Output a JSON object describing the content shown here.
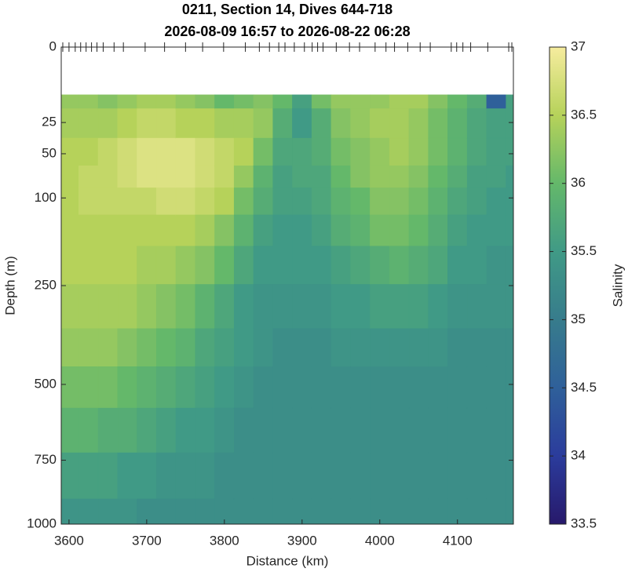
{
  "chart_data": {
    "type": "contourf",
    "title": "0211, Section 14, Dives 644-718",
    "subtitle": "2026-08-09 16:57 to 2026-08-22 06:28",
    "x_label": "Distance (km)",
    "y_label": "Depth (m)",
    "colorbar_label": "Salinity",
    "xlim": [
      3590,
      4172
    ],
    "xticks": [
      3600,
      3700,
      3800,
      3900,
      4000,
      4100
    ],
    "ylim": [
      0,
      1000
    ],
    "yticks": [
      0,
      25,
      50,
      100,
      250,
      500,
      750,
      1000
    ],
    "yscale": "sqrt",
    "yreverse": true,
    "clim": [
      33.5,
      37
    ],
    "cticks": [
      33.5,
      34,
      34.5,
      35,
      35.5,
      36,
      36.5,
      37
    ],
    "colormap": [
      "#27196b",
      "#2b3c9c",
      "#2f609a",
      "#377c8c",
      "#409a86",
      "#64b86a",
      "#b6d25a",
      "#f6ec9e"
    ],
    "dive_x": [
      3592,
      3600,
      3608,
      3615,
      3622,
      3629,
      3636,
      3644,
      3658,
      3670,
      3698,
      3723,
      3750,
      3772,
      3799,
      3827,
      3845,
      3858,
      3870,
      3878,
      3890,
      3903,
      3913,
      3920,
      3927,
      3944,
      3961,
      3974,
      3994,
      4008,
      4019,
      4036,
      4052,
      4065,
      4092,
      4099,
      4107,
      4117,
      4139,
      4166,
      4170
    ],
    "x": [
      3600,
      3625,
      3650,
      3675,
      3700,
      3725,
      3750,
      3775,
      3800,
      3825,
      3850,
      3875,
      3900,
      3925,
      3950,
      3975,
      4000,
      4025,
      4050,
      4075,
      4100,
      4125,
      4150,
      4175
    ],
    "y": [
      10,
      25,
      50,
      75,
      100,
      150,
      200,
      300,
      400,
      500,
      650,
      800,
      1000
    ],
    "z": [
      [
        36.3,
        36.4,
        36.5,
        36.5,
        36.5,
        36.5,
        36.5,
        36.4,
        36.3,
        36.1,
        35.9,
        35.6,
        35.4
      ],
      [
        36.3,
        36.4,
        36.5,
        36.6,
        36.6,
        36.5,
        36.5,
        36.4,
        36.3,
        36.1,
        35.9,
        35.6,
        35.4
      ],
      [
        36.2,
        36.4,
        36.6,
        36.6,
        36.6,
        36.5,
        36.5,
        36.4,
        36.3,
        36.1,
        35.8,
        35.6,
        35.4
      ],
      [
        36.3,
        36.5,
        36.7,
        36.7,
        36.6,
        36.5,
        36.5,
        36.4,
        36.2,
        36.0,
        35.8,
        35.5,
        35.4
      ],
      [
        36.4,
        36.6,
        36.8,
        36.8,
        36.6,
        36.5,
        36.4,
        36.3,
        36.1,
        35.9,
        35.7,
        35.5,
        35.3
      ],
      [
        36.4,
        36.6,
        36.8,
        36.8,
        36.7,
        36.5,
        36.4,
        36.2,
        36.0,
        35.8,
        35.6,
        35.4,
        35.3
      ],
      [
        36.3,
        36.5,
        36.8,
        36.8,
        36.7,
        36.5,
        36.3,
        36.1,
        35.9,
        35.7,
        35.5,
        35.4,
        35.3
      ],
      [
        36.2,
        36.5,
        36.7,
        36.7,
        36.6,
        36.4,
        36.2,
        35.9,
        35.7,
        35.6,
        35.5,
        35.4,
        35.3
      ],
      [
        36.0,
        36.4,
        36.6,
        36.6,
        36.5,
        36.2,
        36.0,
        35.7,
        35.6,
        35.5,
        35.4,
        35.3,
        35.3
      ],
      [
        36.1,
        36.4,
        36.5,
        36.3,
        36.1,
        35.9,
        35.7,
        35.5,
        35.5,
        35.4,
        35.3,
        35.3,
        35.3
      ],
      [
        36.2,
        36.3,
        36.1,
        35.9,
        35.8,
        35.6,
        35.5,
        35.4,
        35.4,
        35.3,
        35.3,
        35.3,
        35.3
      ],
      [
        36.0,
        35.8,
        35.7,
        35.6,
        35.6,
        35.5,
        35.5,
        35.4,
        35.3,
        35.3,
        35.3,
        35.3,
        35.3
      ],
      [
        35.6,
        35.5,
        35.7,
        35.7,
        35.6,
        35.5,
        35.5,
        35.4,
        35.3,
        35.3,
        35.3,
        35.3,
        35.3
      ],
      [
        36.1,
        35.8,
        35.8,
        35.7,
        35.7,
        35.6,
        35.5,
        35.4,
        35.3,
        35.3,
        35.3,
        35.3,
        35.3
      ],
      [
        36.3,
        36.2,
        36.1,
        36.0,
        35.9,
        35.8,
        35.6,
        35.5,
        35.4,
        35.3,
        35.3,
        35.3,
        35.3
      ],
      [
        36.3,
        36.3,
        36.2,
        36.2,
        36.0,
        35.9,
        35.7,
        35.5,
        35.4,
        35.3,
        35.3,
        35.3,
        35.3
      ],
      [
        36.3,
        36.4,
        36.3,
        36.3,
        36.2,
        36.1,
        35.8,
        35.6,
        35.4,
        35.3,
        35.3,
        35.3,
        35.3
      ],
      [
        36.4,
        36.4,
        36.4,
        36.3,
        36.2,
        36.1,
        35.9,
        35.6,
        35.4,
        35.3,
        35.3,
        35.3,
        35.3
      ],
      [
        36.4,
        36.3,
        36.3,
        36.2,
        36.1,
        36.0,
        35.8,
        35.6,
        35.4,
        35.3,
        35.3,
        35.3,
        35.3
      ],
      [
        36.2,
        36.1,
        36.1,
        36.0,
        35.9,
        35.8,
        35.7,
        35.5,
        35.4,
        35.3,
        35.3,
        35.3,
        35.3
      ],
      [
        36.0,
        35.9,
        35.9,
        35.8,
        35.7,
        35.6,
        35.5,
        35.4,
        35.3,
        35.3,
        35.3,
        35.3,
        35.3
      ],
      [
        35.8,
        35.7,
        35.7,
        35.6,
        35.6,
        35.5,
        35.5,
        35.4,
        35.3,
        35.3,
        35.3,
        35.3,
        35.3
      ],
      [
        34.5,
        35.6,
        35.6,
        35.6,
        35.5,
        35.5,
        35.4,
        35.4,
        35.3,
        35.3,
        35.3,
        35.3,
        35.3
      ],
      [
        35.6,
        35.6,
        35.6,
        35.5,
        35.5,
        35.5,
        35.4,
        35.4,
        35.3,
        35.3,
        35.3,
        35.3,
        35.3
      ]
    ]
  }
}
